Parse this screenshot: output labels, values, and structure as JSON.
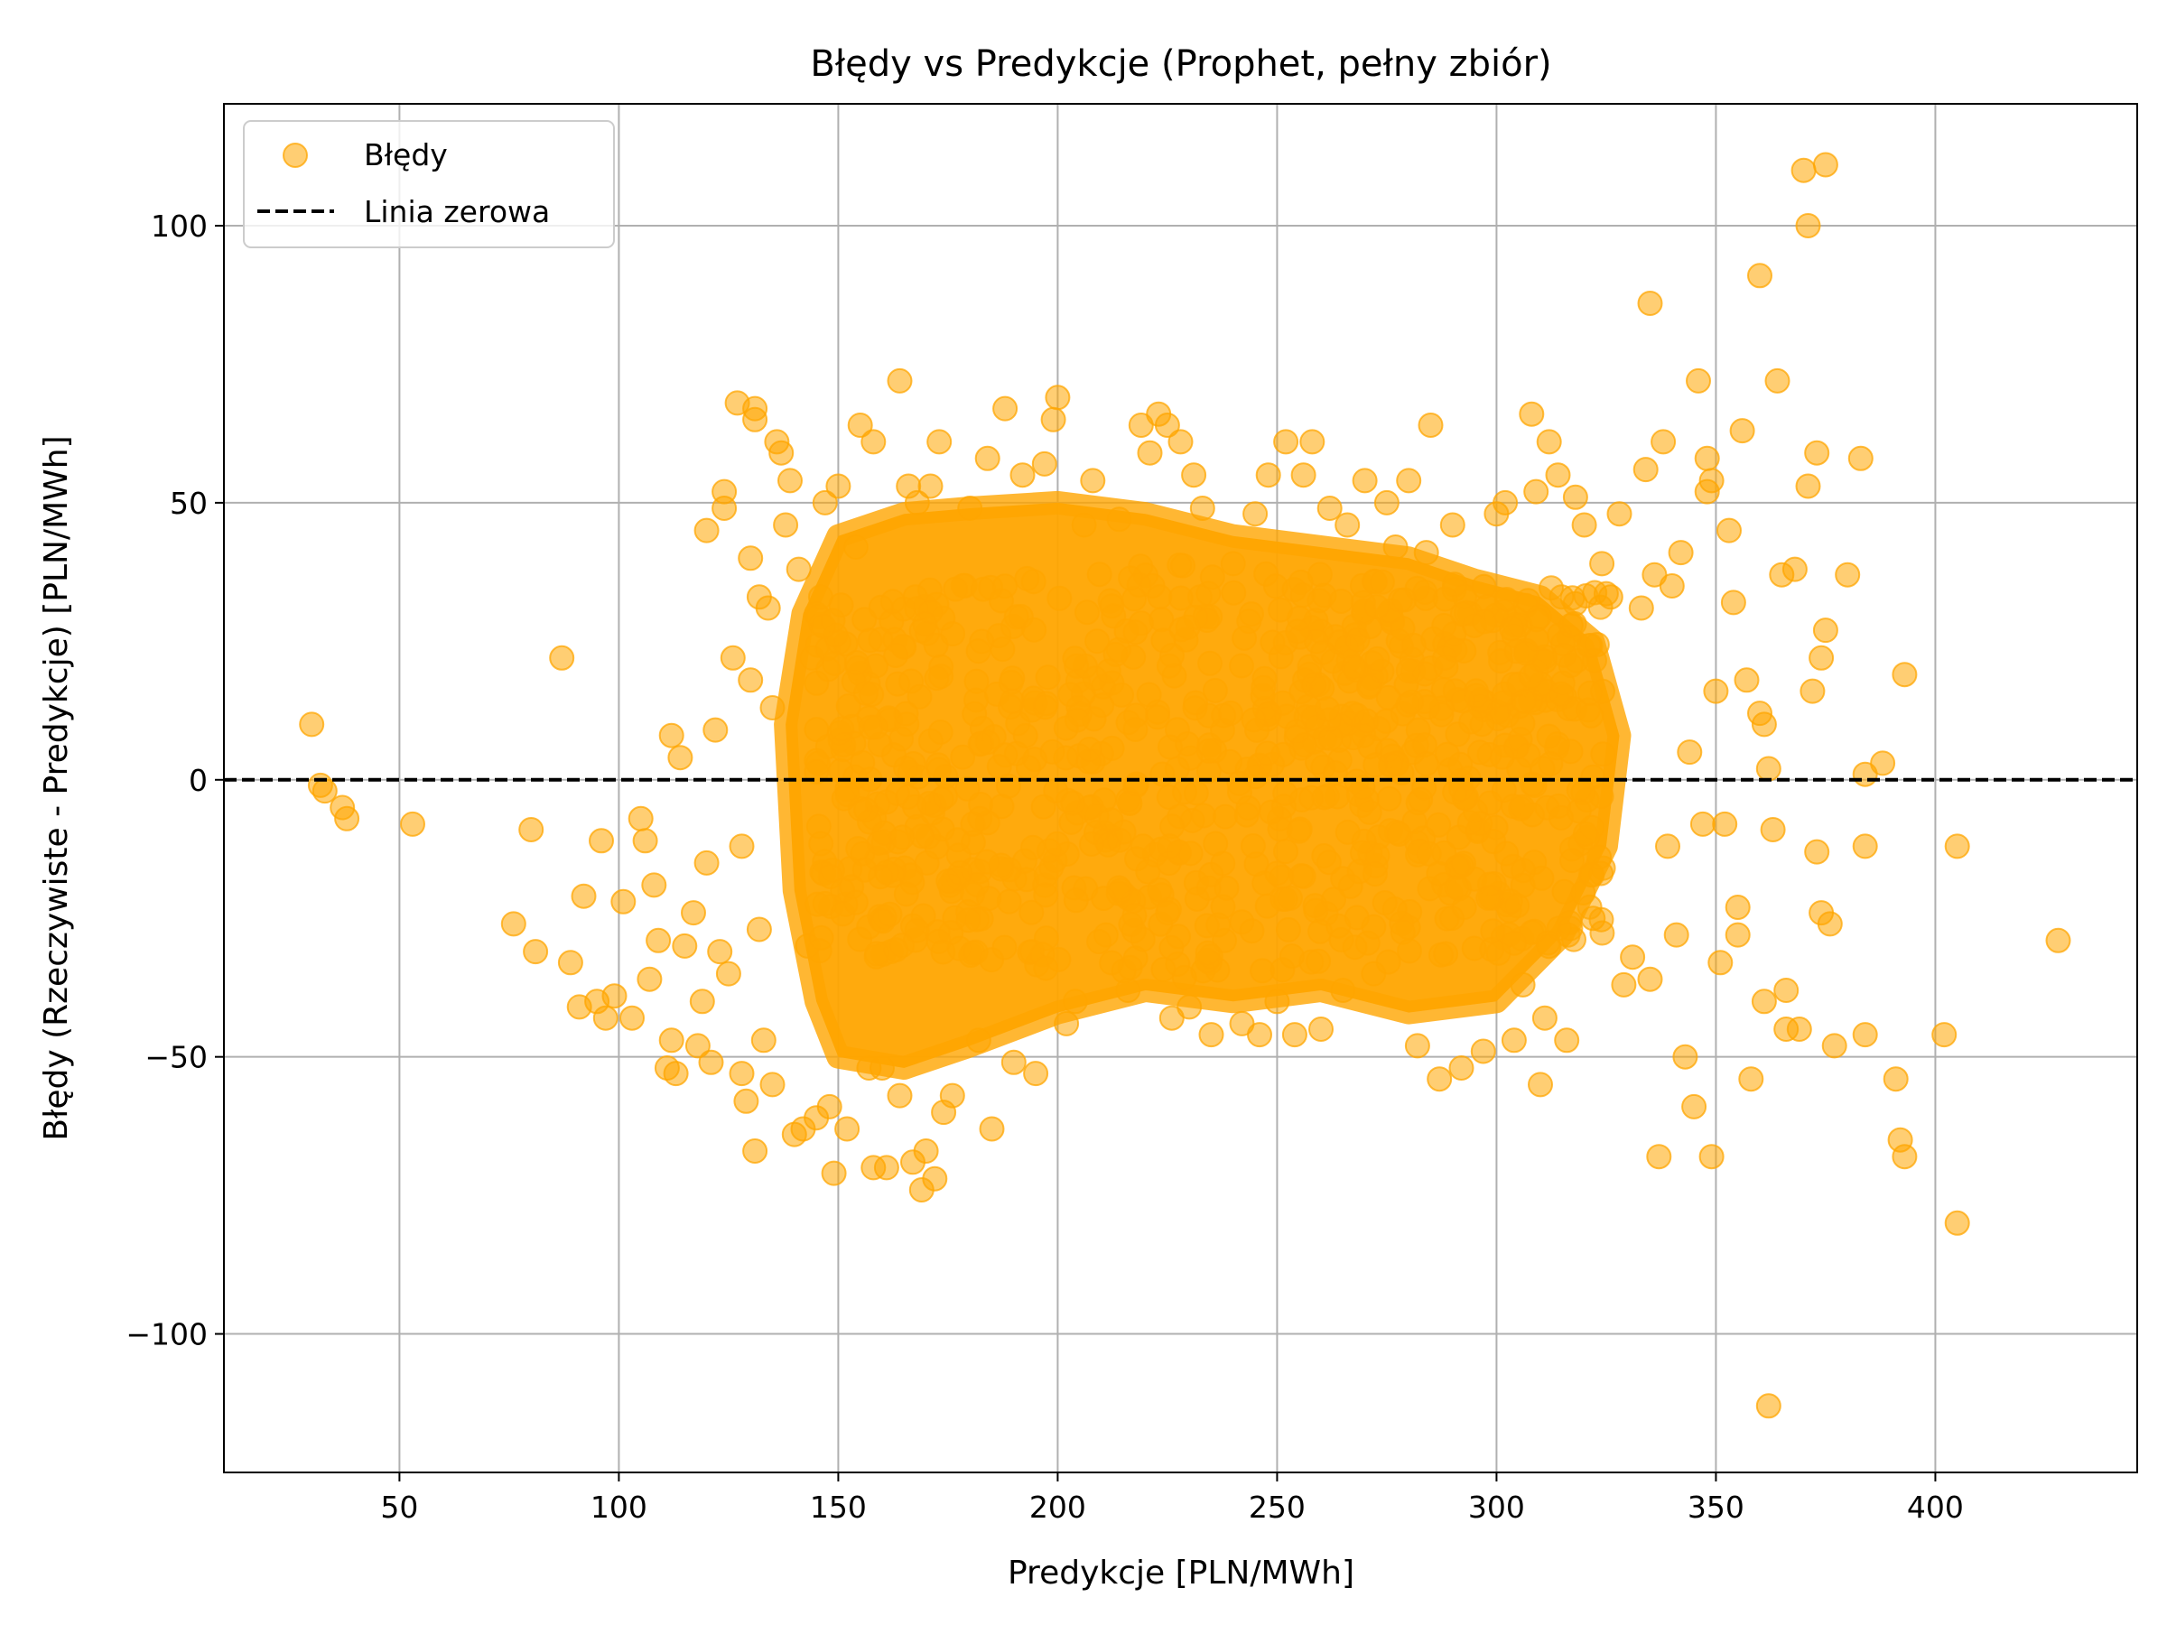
{
  "chart_data": {
    "type": "scatter",
    "title": "Błędy vs Predykcje (Prophet, pełny zbiór)",
    "xlabel": "Predykcje [PLN/MWh]",
    "ylabel": "Błędy (Rzeczywiste - Predykcje) [PLN/MWh]",
    "xlim": [
      10,
      446
    ],
    "ylim": [
      -125,
      122
    ],
    "x_ticks": [
      50,
      100,
      150,
      200,
      250,
      300,
      350,
      400
    ],
    "y_ticks": [
      -100,
      -50,
      0,
      50,
      100
    ],
    "x_tick_labels": [
      "50",
      "100",
      "150",
      "200",
      "250",
      "300",
      "350",
      "400"
    ],
    "y_tick_labels": [
      "−100",
      "−50",
      "0",
      "50",
      "100"
    ],
    "grid": true,
    "legend_position": "top-left",
    "series": [
      {
        "name": "Błędy",
        "kind": "scatter",
        "color": "#FFA500",
        "alpha": 0.55,
        "points": [
          [
            30,
            10
          ],
          [
            32,
            -1
          ],
          [
            33,
            -2
          ],
          [
            37,
            -5
          ],
          [
            38,
            -7
          ],
          [
            53,
            -8
          ],
          [
            76,
            -26
          ],
          [
            80,
            -9
          ],
          [
            81,
            -31
          ],
          [
            87,
            22
          ],
          [
            89,
            -33
          ],
          [
            91,
            -41
          ],
          [
            92,
            -21
          ],
          [
            95,
            -40
          ],
          [
            96,
            -11
          ],
          [
            97,
            -43
          ],
          [
            99,
            -39
          ],
          [
            101,
            -22
          ],
          [
            103,
            -43
          ],
          [
            105,
            -7
          ],
          [
            106,
            -11
          ],
          [
            107,
            -36
          ],
          [
            108,
            -19
          ],
          [
            109,
            -29
          ],
          [
            111,
            -52
          ],
          [
            112,
            8
          ],
          [
            112,
            -47
          ],
          [
            113,
            -53
          ],
          [
            114,
            4
          ],
          [
            115,
            -30
          ],
          [
            117,
            -24
          ],
          [
            118,
            -48
          ],
          [
            119,
            -40
          ],
          [
            120,
            45
          ],
          [
            120,
            -15
          ],
          [
            121,
            -51
          ],
          [
            122,
            9
          ],
          [
            123,
            -31
          ],
          [
            124,
            52
          ],
          [
            124,
            49
          ],
          [
            125,
            -35
          ],
          [
            126,
            22
          ],
          [
            127,
            68
          ],
          [
            128,
            -53
          ],
          [
            128,
            -12
          ],
          [
            129,
            -58
          ],
          [
            130,
            40
          ],
          [
            130,
            18
          ],
          [
            131,
            67
          ],
          [
            131,
            65
          ],
          [
            131,
            -67
          ],
          [
            132,
            33
          ],
          [
            132,
            -27
          ],
          [
            133,
            -47
          ],
          [
            134,
            31
          ],
          [
            135,
            -55
          ],
          [
            135,
            13
          ],
          [
            136,
            61
          ],
          [
            137,
            59
          ],
          [
            138,
            46
          ],
          [
            139,
            54
          ],
          [
            140,
            -64
          ],
          [
            141,
            38
          ],
          [
            142,
            -63
          ],
          [
            143,
            -30
          ],
          [
            144,
            22
          ],
          [
            145,
            -61
          ],
          [
            146,
            28
          ],
          [
            147,
            50
          ],
          [
            148,
            -59
          ],
          [
            149,
            -71
          ],
          [
            150,
            53
          ],
          [
            152,
            -63
          ],
          [
            154,
            42
          ],
          [
            155,
            64
          ],
          [
            157,
            -52
          ],
          [
            158,
            61
          ],
          [
            158,
            -70
          ],
          [
            160,
            -52
          ],
          [
            161,
            -70
          ],
          [
            162,
            -31
          ],
          [
            164,
            72
          ],
          [
            164,
            -57
          ],
          [
            166,
            53
          ],
          [
            167,
            -69
          ],
          [
            168,
            50
          ],
          [
            169,
            -74
          ],
          [
            170,
            -67
          ],
          [
            171,
            53
          ],
          [
            172,
            -72
          ],
          [
            173,
            61
          ],
          [
            174,
            -60
          ],
          [
            176,
            -57
          ],
          [
            180,
            49
          ],
          [
            182,
            -47
          ],
          [
            184,
            58
          ],
          [
            185,
            -63
          ],
          [
            188,
            67
          ],
          [
            190,
            -51
          ],
          [
            192,
            55
          ],
          [
            195,
            -53
          ],
          [
            197,
            57
          ],
          [
            199,
            65
          ],
          [
            200,
            69
          ],
          [
            202,
            -44
          ],
          [
            204,
            -40
          ],
          [
            206,
            46
          ],
          [
            208,
            54
          ],
          [
            211,
            -28
          ],
          [
            214,
            47
          ],
          [
            216,
            -38
          ],
          [
            219,
            64
          ],
          [
            221,
            59
          ],
          [
            223,
            66
          ],
          [
            225,
            64
          ],
          [
            226,
            -43
          ],
          [
            228,
            61
          ],
          [
            230,
            -41
          ],
          [
            231,
            55
          ],
          [
            233,
            49
          ],
          [
            235,
            -46
          ],
          [
            238,
            -29
          ],
          [
            240,
            39
          ],
          [
            242,
            -44
          ],
          [
            245,
            48
          ],
          [
            246,
            -46
          ],
          [
            248,
            55
          ],
          [
            250,
            -40
          ],
          [
            252,
            61
          ],
          [
            254,
            -46
          ],
          [
            256,
            55
          ],
          [
            258,
            61
          ],
          [
            260,
            -45
          ],
          [
            262,
            49
          ],
          [
            265,
            -38
          ],
          [
            266,
            46
          ],
          [
            270,
            54
          ],
          [
            272,
            -35
          ],
          [
            275,
            50
          ],
          [
            277,
            42
          ],
          [
            280,
            54
          ],
          [
            282,
            -48
          ],
          [
            284,
            41
          ],
          [
            285,
            64
          ],
          [
            287,
            -54
          ],
          [
            290,
            46
          ],
          [
            292,
            -52
          ],
          [
            294,
            30
          ],
          [
            297,
            -49
          ],
          [
            300,
            48
          ],
          [
            302,
            50
          ],
          [
            304,
            -47
          ],
          [
            306,
            -37
          ],
          [
            308,
            66
          ],
          [
            309,
            52
          ],
          [
            310,
            -55
          ],
          [
            311,
            -43
          ],
          [
            312,
            61
          ],
          [
            314,
            55
          ],
          [
            316,
            -47
          ],
          [
            318,
            51
          ],
          [
            320,
            46
          ],
          [
            322,
            -25
          ],
          [
            324,
            39
          ],
          [
            326,
            33
          ],
          [
            328,
            48
          ],
          [
            329,
            -37
          ],
          [
            331,
            -32
          ],
          [
            333,
            31
          ],
          [
            334,
            56
          ],
          [
            335,
            86
          ],
          [
            335,
            -36
          ],
          [
            336,
            37
          ],
          [
            337,
            -68
          ],
          [
            338,
            61
          ],
          [
            339,
            -12
          ],
          [
            340,
            35
          ],
          [
            341,
            -28
          ],
          [
            342,
            41
          ],
          [
            343,
            -50
          ],
          [
            344,
            5
          ],
          [
            345,
            -59
          ],
          [
            346,
            72
          ],
          [
            347,
            -8
          ],
          [
            348,
            58
          ],
          [
            348,
            52
          ],
          [
            349,
            -68
          ],
          [
            349,
            54
          ],
          [
            350,
            16
          ],
          [
            351,
            -33
          ],
          [
            352,
            -8
          ],
          [
            353,
            45
          ],
          [
            354,
            32
          ],
          [
            355,
            -23
          ],
          [
            355,
            -28
          ],
          [
            356,
            63
          ],
          [
            357,
            18
          ],
          [
            358,
            -54
          ],
          [
            360,
            91
          ],
          [
            360,
            12
          ],
          [
            361,
            -40
          ],
          [
            361,
            10
          ],
          [
            362,
            -113
          ],
          [
            362,
            2
          ],
          [
            363,
            -9
          ],
          [
            364,
            72
          ],
          [
            365,
            37
          ],
          [
            366,
            -38
          ],
          [
            366,
            -45
          ],
          [
            368,
            38
          ],
          [
            369,
            -45
          ],
          [
            370,
            110
          ],
          [
            371,
            53
          ],
          [
            371,
            100
          ],
          [
            372,
            16
          ],
          [
            373,
            59
          ],
          [
            373,
            -13
          ],
          [
            374,
            22
          ],
          [
            374,
            -24
          ],
          [
            375,
            111
          ],
          [
            375,
            27
          ],
          [
            376,
            -26
          ],
          [
            377,
            -48
          ],
          [
            380,
            37
          ],
          [
            383,
            58
          ],
          [
            384,
            1
          ],
          [
            384,
            -12
          ],
          [
            384,
            -46
          ],
          [
            388,
            3
          ],
          [
            391,
            -54
          ],
          [
            392,
            -65
          ],
          [
            393,
            -68
          ],
          [
            393,
            19
          ],
          [
            402,
            -46
          ],
          [
            405,
            -12
          ],
          [
            405,
            -80
          ],
          [
            428,
            -29
          ]
        ]
      },
      {
        "name": "Linia zerowa",
        "kind": "hline",
        "y": 0,
        "color": "#000000",
        "dash": true
      }
    ]
  }
}
